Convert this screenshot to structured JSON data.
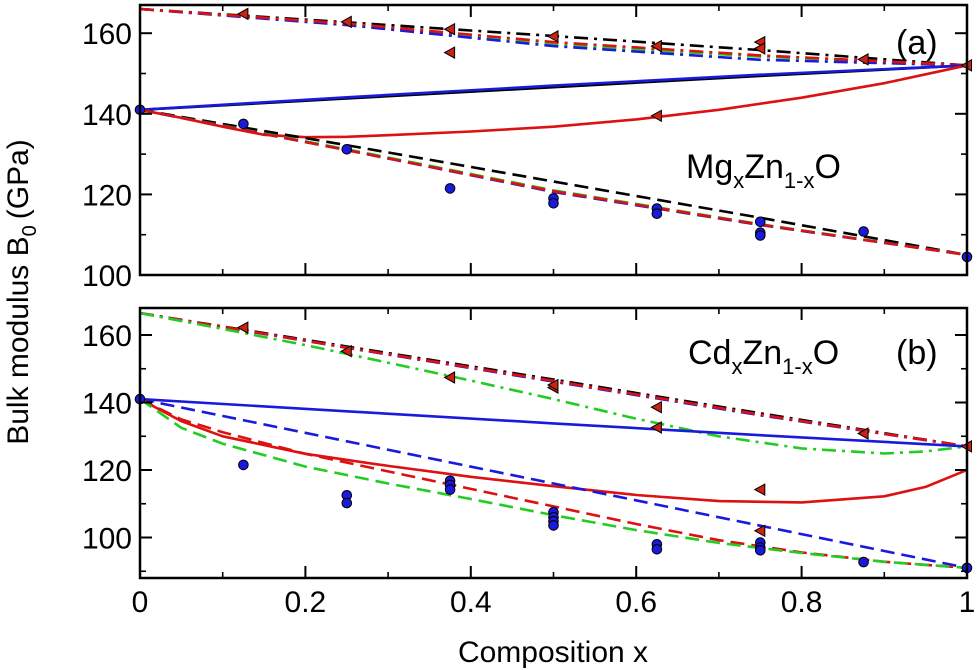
{
  "chart_data": {
    "type": "scatter",
    "xlabel": "Composition x",
    "ylabel": "Bulk modulus B",
    "ylabel_sub": "0",
    "ylabel_unit": "(GPa)",
    "panels": [
      {
        "id": "a",
        "label": "(a)",
        "compound": {
          "base": "Mg",
          "sub1": "x",
          "mid": "Zn",
          "sub2": "1-x",
          "tail": "O"
        },
        "xlim": [
          0,
          1
        ],
        "ylim": [
          100,
          167
        ],
        "xticks": [
          0,
          0.2,
          0.4,
          0.6,
          0.8,
          1
        ],
        "yticks": [
          100,
          120,
          140,
          160
        ],
        "xtick_labels": [
          "0",
          "0.2",
          "0.4",
          "0.6",
          "0.8",
          "1"
        ],
        "ytick_labels": [
          "100",
          "120",
          "140",
          "160"
        ],
        "series": [
          {
            "name": "upper-black-dashdot",
            "style": "dashdot",
            "color": "#000000",
            "x": [
              0,
              0.25,
              0.5,
              0.75,
              1
            ],
            "y": [
              166,
              162.7,
              159.3,
              155.8,
              152
            ]
          },
          {
            "name": "upper-green-dashdot",
            "style": "dashdot",
            "color": "#22cc22",
            "x": [
              0,
              0.25,
              0.5,
              0.75,
              1
            ],
            "y": [
              166,
              162.3,
              157.2,
              154.2,
              152
            ]
          },
          {
            "name": "upper-blue-dashdot",
            "style": "dashdot",
            "color": "#1a1adc",
            "x": [
              0,
              0.25,
              0.5,
              0.75,
              1
            ],
            "y": [
              166,
              162.0,
              156.8,
              153.4,
              152
            ]
          },
          {
            "name": "upper-red-dashdot",
            "style": "dashdot",
            "color": "#dd1111",
            "x": [
              0,
              0.25,
              0.5,
              0.75,
              1
            ],
            "y": [
              166,
              162.4,
              157.8,
              154.5,
              152
            ]
          },
          {
            "name": "black-solid",
            "style": "solid",
            "color": "#000000",
            "x": [
              0,
              0.25,
              0.5,
              0.75,
              1
            ],
            "y": [
              141,
              143.8,
              146.6,
              149.4,
              152
            ]
          },
          {
            "name": "blue-solid",
            "style": "solid",
            "color": "#1a1adc",
            "x": [
              0,
              0.25,
              0.5,
              0.75,
              1
            ],
            "y": [
              141,
              144.1,
              147.0,
              149.7,
              152
            ]
          },
          {
            "name": "red-solid",
            "style": "solid",
            "color": "#dd1111",
            "x": [
              0,
              0.05,
              0.1,
              0.15,
              0.2,
              0.25,
              0.3,
              0.4,
              0.5,
              0.6,
              0.7,
              0.8,
              0.9,
              0.95,
              1
            ],
            "y": [
              141,
              139,
              136.8,
              134.8,
              134.2,
              134.3,
              134.7,
              135.6,
              136.8,
              138.6,
              141.0,
              144.0,
              147.6,
              149.8,
              152
            ]
          },
          {
            "name": "lower-black-dashed",
            "style": "dashed",
            "color": "#000000",
            "x": [
              0,
              0.25,
              0.5,
              0.75,
              1
            ],
            "y": [
              141,
              132.2,
              123.2,
              114.2,
              105
            ]
          },
          {
            "name": "lower-green-dashed",
            "style": "dashed",
            "color": "#22cc22",
            "x": [
              0,
              0.25,
              0.5,
              0.75,
              1
            ],
            "y": [
              141,
              131.2,
              121.0,
              112.6,
              105
            ]
          },
          {
            "name": "lower-blue-dashed",
            "style": "dashed",
            "color": "#1a1adc",
            "x": [
              0,
              0.25,
              0.5,
              0.75,
              1
            ],
            "y": [
              141,
              131.0,
              120.6,
              112.4,
              105
            ]
          },
          {
            "name": "lower-red-dashed",
            "style": "dashed",
            "color": "#dd1111",
            "x": [
              0,
              0.25,
              0.5,
              0.75,
              1
            ],
            "y": [
              141,
              131.0,
              120.8,
              112.5,
              105
            ]
          }
        ],
        "points_circle": [
          [
            0,
            141
          ],
          [
            0.125,
            137.5
          ],
          [
            0.25,
            131.2
          ],
          [
            0.375,
            121.5
          ],
          [
            0.5,
            119
          ],
          [
            0.5,
            117.8
          ],
          [
            0.625,
            116.5
          ],
          [
            0.625,
            115.2
          ],
          [
            0.75,
            113.2
          ],
          [
            0.75,
            110.5
          ],
          [
            0.75,
            109.8
          ],
          [
            0.875,
            110.8
          ],
          [
            1,
            104.5
          ]
        ],
        "points_triangle": [
          [
            0.125,
            164.8
          ],
          [
            0.25,
            162.8
          ],
          [
            0.375,
            161
          ],
          [
            0.375,
            155.2
          ],
          [
            0.5,
            159.2
          ],
          [
            0.625,
            156.8
          ],
          [
            0.75,
            157.8
          ],
          [
            0.75,
            156.2
          ],
          [
            0.625,
            139.5
          ],
          [
            0.875,
            153.5
          ],
          [
            1,
            152
          ]
        ]
      },
      {
        "id": "b",
        "label": "(b)",
        "compound": {
          "base": "Cd",
          "sub1": "x",
          "mid": "Zn",
          "sub2": "1-x",
          "tail": "O"
        },
        "xlim": [
          0,
          1
        ],
        "ylim": [
          88,
          168
        ],
        "xticks": [
          0,
          0.2,
          0.4,
          0.6,
          0.8,
          1
        ],
        "yticks": [
          100,
          120,
          140,
          160
        ],
        "xtick_labels": [
          "0",
          "0.2",
          "0.4",
          "0.6",
          "0.8",
          "1"
        ],
        "ytick_labels": [
          "100",
          "120",
          "140",
          "160"
        ],
        "series": [
          {
            "name": "upper-black-dashdot",
            "style": "dashdot",
            "color": "#000000",
            "x": [
              0,
              0.25,
              0.5,
              0.75,
              1
            ],
            "y": [
              166.5,
              156.6,
              146.8,
              136.8,
              127
            ]
          },
          {
            "name": "upper-blue-dashdot",
            "style": "dashdot",
            "color": "#1a1adc",
            "x": [
              0,
              0.25,
              0.5,
              0.75,
              1
            ],
            "y": [
              166.5,
              156.2,
              146.2,
              136.2,
              127
            ]
          },
          {
            "name": "upper-red-dashdot",
            "style": "dashdot",
            "color": "#dd1111",
            "x": [
              0,
              0.25,
              0.5,
              0.75,
              1
            ],
            "y": [
              166.5,
              156.3,
              146.4,
              136.4,
              127
            ]
          },
          {
            "name": "upper-green-dashdot",
            "style": "dashdot",
            "color": "#22cc22",
            "x": [
              0,
              0.1,
              0.2,
              0.3,
              0.4,
              0.5,
              0.6,
              0.7,
              0.8,
              0.9,
              0.95,
              1
            ],
            "y": [
              166.5,
              161.8,
              157,
              151.8,
              146.5,
              141,
              135.2,
              130.0,
              126.4,
              124.9,
              125.5,
              127
            ]
          },
          {
            "name": "blue-solid",
            "style": "solid",
            "color": "#1a1adc",
            "x": [
              0,
              0.25,
              0.5,
              0.75,
              1
            ],
            "y": [
              141,
              137.4,
              133.8,
              130.3,
              127
            ]
          },
          {
            "name": "red-solid",
            "style": "solid",
            "color": "#dd1111",
            "x": [
              0,
              0.05,
              0.1,
              0.2,
              0.3,
              0.4,
              0.5,
              0.6,
              0.7,
              0.8,
              0.9,
              0.95,
              1
            ],
            "y": [
              141,
              134.5,
              130,
              124.8,
              121.2,
              118.0,
              115.2,
              112.6,
              110.8,
              110.4,
              112.2,
              115.0,
              120
            ]
          },
          {
            "name": "lower-blue-dashed",
            "style": "dashed",
            "color": "#1a1adc",
            "x": [
              0,
              0.25,
              0.5,
              0.75,
              1
            ],
            "y": [
              141,
              128.5,
              116,
              103.5,
              91
            ]
          },
          {
            "name": "lower-red-dashed",
            "style": "dashed",
            "color": "#dd1111",
            "x": [
              0,
              0.05,
              0.1,
              0.2,
              0.3,
              0.4,
              0.5,
              0.6,
              0.7,
              0.8,
              0.9,
              1
            ],
            "y": [
              141,
              135,
              131.2,
              124.8,
              119.6,
              114.4,
              109.2,
              104.0,
              99.2,
              95.6,
              92.8,
              91
            ]
          },
          {
            "name": "lower-green-dashed",
            "style": "dashed",
            "color": "#22cc22",
            "x": [
              0,
              0.05,
              0.1,
              0.2,
              0.3,
              0.4,
              0.5,
              0.6,
              0.7,
              0.8,
              0.9,
              1
            ],
            "y": [
              141,
              132.5,
              127.8,
              121.0,
              116.0,
              111.4,
              106.6,
              102.2,
              98.4,
              95.4,
              92.8,
              91
            ]
          }
        ],
        "points_circle": [
          [
            0,
            141
          ],
          [
            0.125,
            121.5
          ],
          [
            0.25,
            112.5
          ],
          [
            0.25,
            110.2
          ],
          [
            0.375,
            116.8
          ],
          [
            0.375,
            115.6
          ],
          [
            0.375,
            114.2
          ],
          [
            0.5,
            107.5
          ],
          [
            0.5,
            106
          ],
          [
            0.5,
            104.8
          ],
          [
            0.5,
            103.6
          ],
          [
            0.625,
            98
          ],
          [
            0.625,
            96.5
          ],
          [
            0.75,
            98.5
          ],
          [
            0.75,
            97
          ],
          [
            0.75,
            96.2
          ],
          [
            0.875,
            92.7
          ],
          [
            1,
            91
          ]
        ],
        "points_triangle": [
          [
            0.125,
            162.2
          ],
          [
            0.25,
            155.2
          ],
          [
            0.375,
            147.4
          ],
          [
            0.5,
            144.4
          ],
          [
            0.5,
            145.2
          ],
          [
            0.625,
            138.6
          ],
          [
            0.625,
            132.6
          ],
          [
            0.75,
            114.2
          ],
          [
            0.75,
            102
          ],
          [
            0.875,
            130.8
          ],
          [
            1,
            127
          ]
        ]
      }
    ]
  },
  "colors": {
    "circle_fill": "#1a1adc",
    "triangle_fill": "#cc2211"
  }
}
